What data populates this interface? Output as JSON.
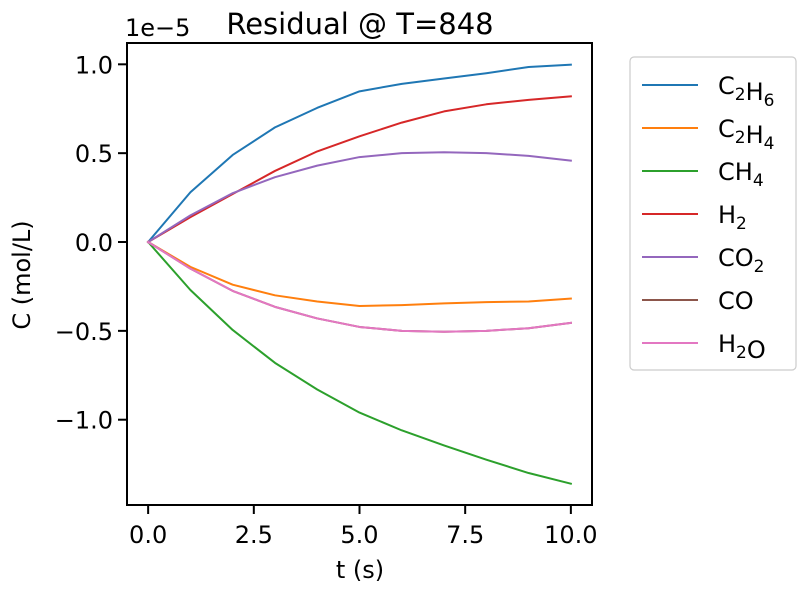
{
  "chart_data": {
    "type": "line",
    "title": "Residual @ T=848",
    "xlabel": "t (s)",
    "ylabel": "C (mol/L)",
    "y_offset_label": "1e−5",
    "xlim": [
      -0.5,
      10.5
    ],
    "ylim": [
      -1.48,
      1.12
    ],
    "y_scale": 1e-05,
    "xticks": [
      0.0,
      2.5,
      5.0,
      7.5,
      10.0
    ],
    "xtick_labels": [
      "0.0",
      "2.5",
      "5.0",
      "7.5",
      "10.0"
    ],
    "yticks": [
      -1.0,
      -0.5,
      0.0,
      0.5,
      1.0
    ],
    "ytick_labels": [
      "−1.0",
      "−0.5",
      "0.0",
      "0.5",
      "1.0"
    ],
    "grid": false,
    "legend_placement": "outside-right",
    "x": [
      0,
      1,
      2,
      3,
      4,
      5,
      6,
      7,
      8,
      9,
      10
    ],
    "series": [
      {
        "name": "C2H6",
        "label_base": [
          "C",
          "H"
        ],
        "label_sub": [
          "2",
          "6"
        ],
        "color": "#1f77b4",
        "values": [
          0.0,
          0.28,
          0.49,
          0.645,
          0.755,
          0.848,
          0.89,
          0.92,
          0.95,
          0.985,
          0.998
        ]
      },
      {
        "name": "C2H4",
        "label_base": [
          "C",
          "H"
        ],
        "label_sub": [
          "2",
          "4"
        ],
        "color": "#ff7f0e",
        "values": [
          0.0,
          -0.14,
          -0.24,
          -0.3,
          -0.335,
          -0.36,
          -0.355,
          -0.345,
          -0.338,
          -0.335,
          -0.318
        ]
      },
      {
        "name": "CH4",
        "label_base": [
          "CH"
        ],
        "label_sub": [
          "4"
        ],
        "color": "#2ca02c",
        "values": [
          0.0,
          -0.27,
          -0.495,
          -0.68,
          -0.83,
          -0.96,
          -1.06,
          -1.145,
          -1.225,
          -1.3,
          -1.36
        ]
      },
      {
        "name": "H2",
        "label_base": [
          "H"
        ],
        "label_sub": [
          "2"
        ],
        "color": "#d62728",
        "values": [
          0.0,
          0.14,
          0.27,
          0.4,
          0.51,
          0.595,
          0.672,
          0.735,
          0.775,
          0.8,
          0.82
        ]
      },
      {
        "name": "CO2",
        "label_base": [
          "CO"
        ],
        "label_sub": [
          "2"
        ],
        "color": "#9467bd",
        "values": [
          0.0,
          0.15,
          0.275,
          0.365,
          0.43,
          0.478,
          0.5,
          0.505,
          0.5,
          0.485,
          0.458
        ]
      },
      {
        "name": "CO",
        "label_base": [
          "CO"
        ],
        "label_sub": [],
        "color": "#8c564b",
        "values": [
          0.0,
          -0.15,
          -0.275,
          -0.365,
          -0.43,
          -0.478,
          -0.5,
          -0.505,
          -0.5,
          -0.485,
          -0.455
        ]
      },
      {
        "name": "H2O",
        "label_base": [
          "H",
          "O"
        ],
        "label_sub": [
          "2",
          ""
        ],
        "color": "#e377c2",
        "values": [
          0.0,
          -0.15,
          -0.275,
          -0.365,
          -0.43,
          -0.478,
          -0.5,
          -0.505,
          -0.5,
          -0.485,
          -0.455
        ]
      }
    ]
  }
}
